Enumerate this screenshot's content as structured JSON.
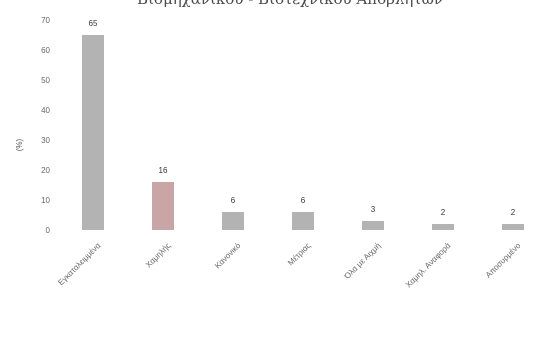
{
  "chart_data": {
    "type": "bar",
    "title": "Βιομηχανικού - Βιοτεχνικού Αποβλήτων",
    "xlabel": "",
    "ylabel": "(%)",
    "ylim": [
      0,
      70
    ],
    "yticks": [
      0,
      10,
      20,
      30,
      40,
      50,
      60,
      70
    ],
    "grid": false,
    "categories": [
      "Εγκαταλειμμένα",
      "Χαμηλής",
      "Κανονικό",
      "Μέτριας",
      "Όλα με Αιχμή",
      "Χαμηλ. Αναφορά",
      "Αποσυρμένο"
    ],
    "values": [
      65,
      16,
      6,
      6,
      3,
      2,
      2
    ],
    "data_labels": [
      "65",
      "16",
      "6",
      "6",
      "3",
      "2",
      "2"
    ],
    "colors": {
      "bar": "#b3b3b3",
      "bar_highlight": "#c9a5a5",
      "axis_text": "#666666",
      "emphasis_label": "#b03030"
    }
  }
}
